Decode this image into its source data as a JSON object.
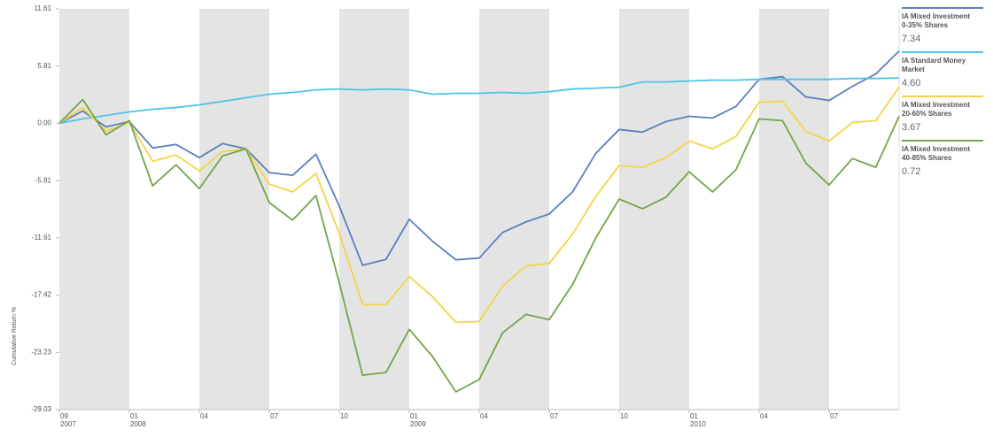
{
  "chart_data": {
    "type": "line",
    "y_label": "Cumulative Return %",
    "categories": [
      "09",
      null,
      null,
      "01",
      null,
      null,
      "04",
      null,
      null,
      "07",
      null,
      null,
      "10",
      null,
      null,
      "01",
      null,
      null,
      "04",
      null,
      null,
      "07",
      null,
      null,
      "10",
      null,
      null,
      "01",
      null,
      null,
      "04",
      null,
      null,
      "07",
      null,
      null,
      null
    ],
    "year_labels": [
      "2007",
      null,
      null,
      "2008",
      null,
      null,
      null,
      null,
      null,
      null,
      null,
      null,
      null,
      null,
      null,
      "2009",
      null,
      null,
      null,
      null,
      null,
      null,
      null,
      null,
      null,
      null,
      null,
      "2010",
      null,
      null,
      null,
      null,
      null,
      null,
      null,
      null,
      null
    ],
    "ylim": [
      -29.03,
      11.61
    ],
    "yticks": [
      11.61,
      5.81,
      {
        "value": 0,
        "label": "0.00"
      },
      -5.81,
      -11.61,
      -17.42,
      -23.23,
      -29.03
    ],
    "grid": false,
    "shaded_bands": true,
    "series": [
      {
        "name": "IA Mixed Investment 0-35% Shares",
        "color": "#5b7fbf",
        "values": [
          0,
          1.25,
          -0.36,
          0.18,
          -2.5,
          -2.14,
          -3.48,
          -2.05,
          -2.59,
          -5.0,
          -5.27,
          -3.13,
          -8.39,
          -14.4,
          -13.8,
          -9.73,
          -11.96,
          -13.84,
          -13.66,
          -11.07,
          -10.0,
          -9.2,
          -6.96,
          -3.04,
          -0.63,
          -0.89,
          0.18,
          0.71,
          0.54,
          1.7,
          4.46,
          4.73,
          2.68,
          2.32,
          3.75,
          5.0,
          7.34
        ]
      },
      {
        "name": "IA Standard Money Market",
        "color": "#4cc3ea",
        "values": [
          0,
          0.45,
          0.8,
          1.16,
          1.43,
          1.6,
          1.88,
          2.23,
          2.59,
          2.95,
          3.13,
          3.39,
          3.48,
          3.39,
          3.48,
          3.39,
          2.95,
          3.04,
          3.04,
          3.13,
          3.04,
          3.21,
          3.48,
          3.57,
          3.66,
          4.2,
          4.2,
          4.29,
          4.38,
          4.38,
          4.46,
          4.46,
          4.46,
          4.46,
          4.55,
          4.55,
          4.6
        ],
        "value_labels": [
          null,
          null,
          null,
          null,
          null,
          null,
          null,
          null,
          null,
          null,
          null,
          null,
          null,
          null,
          null,
          null,
          null,
          null,
          null,
          null,
          null,
          null,
          null,
          null,
          null,
          null,
          null,
          null,
          null,
          null,
          null,
          null,
          null,
          null,
          null,
          null,
          "4.60"
        ]
      },
      {
        "name": "IA Mixed Investment 20-60% Shares",
        "color": "#f4d444",
        "values": [
          0,
          1.6,
          -0.8,
          0.1,
          -3.84,
          -3.21,
          -4.82,
          -2.86,
          -2.59,
          -6.16,
          -6.96,
          -5.09,
          -11.16,
          -18.39,
          -18.39,
          -15.54,
          -17.59,
          -20.18,
          -20.09,
          -16.52,
          -14.46,
          -14.2,
          -11.25,
          -7.41,
          -4.29,
          -4.46,
          -3.48,
          -1.79,
          -2.59,
          -1.34,
          2.14,
          2.23,
          -0.8,
          -1.79,
          0.09,
          0.27,
          3.67
        ]
      },
      {
        "name": "IA Mixed Investment 40-85% Shares",
        "color": "#74a44a",
        "values": [
          0,
          2.41,
          -1.16,
          0.27,
          -6.34,
          -4.2,
          -6.61,
          -3.3,
          -2.59,
          -8.04,
          -9.82,
          -7.32,
          -16.16,
          -25.54,
          -25.27,
          -20.89,
          -23.66,
          -27.23,
          -25.98,
          -21.25,
          -19.38,
          -19.91,
          -16.34,
          -11.61,
          -7.68,
          -8.66,
          -7.5,
          -4.91,
          -6.96,
          -4.73,
          0.45,
          0.27,
          -4.02,
          -6.25,
          -3.57,
          -4.46,
          0.72
        ]
      }
    ]
  }
}
